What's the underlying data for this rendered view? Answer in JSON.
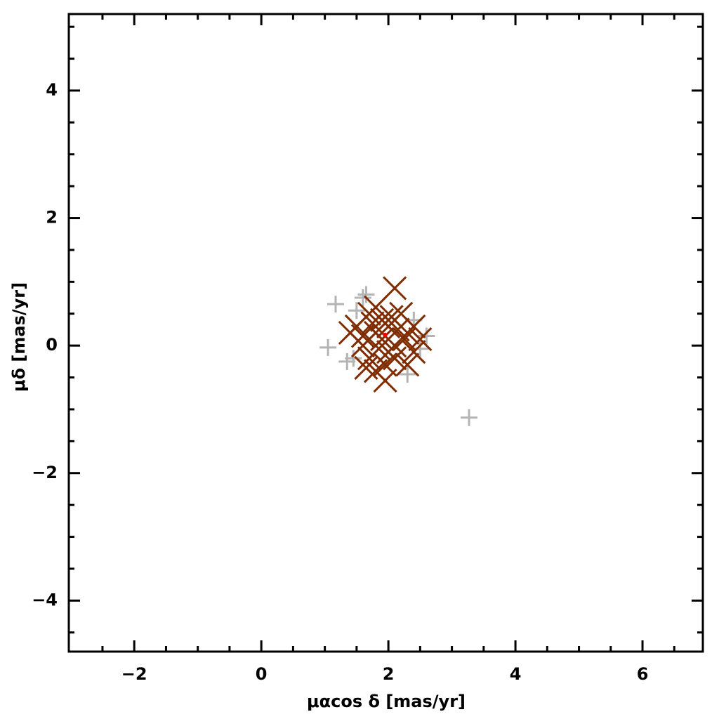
{
  "chart_data": {
    "type": "scatter",
    "xlabel": "μαcos δ [mas/yr]",
    "ylabel": "μδ [mas/yr]",
    "xlim": [
      -3.03,
      6.95
    ],
    "ylim": [
      -4.8,
      5.2
    ],
    "xticks": [
      {
        "value": -2,
        "label": "−2"
      },
      0,
      2,
      4,
      6
    ],
    "yticks": [
      {
        "value": -4,
        "label": "−4"
      },
      {
        "value": -2,
        "label": "−2"
      },
      0,
      2,
      4
    ],
    "xticks_minor": [
      -2.5,
      -1.5,
      -1,
      -0.5,
      0.5,
      1,
      1.5,
      2.5,
      3,
      3.5,
      4.5,
      5,
      5.5,
      6.5
    ],
    "yticks_minor": [
      -4.5,
      -3.5,
      -3,
      -2.5,
      -1.5,
      -1,
      -0.5,
      0.5,
      1,
      1.5,
      2.5,
      3,
      3.5,
      4.5,
      5
    ],
    "series": [
      {
        "color": "#b4b4b4",
        "marker": "plus",
        "x": [
          1.17,
          1.05,
          1.35,
          1.6,
          1.65,
          2.4,
          2.6,
          2.5,
          2.3,
          3.27,
          1.45,
          1.5
        ],
        "values": [
          0.65,
          -0.03,
          -0.25,
          0.75,
          0.8,
          0.4,
          0.15,
          -0.05,
          -0.45,
          -1.13,
          -0.2,
          0.55
        ]
      },
      {
        "color": "#7f2c00",
        "marker": "cross",
        "x": [
          2.1,
          1.4,
          1.5,
          1.7,
          1.8,
          2.2,
          2.4,
          2.5,
          1.6,
          1.7,
          1.65,
          1.95,
          2.3,
          2.4,
          1.8,
          1.9,
          2.0,
          2.1,
          2.0,
          1.85,
          2.15,
          1.75,
          2.05,
          1.9,
          2.25,
          1.6,
          2.3,
          1.95,
          2.1,
          1.8
        ],
        "values": [
          0.9,
          0.2,
          0.3,
          0.5,
          0.6,
          0.5,
          0.3,
          0.1,
          0.0,
          -0.2,
          -0.35,
          -0.55,
          -0.3,
          -0.1,
          0.2,
          0.1,
          0.3,
          0.0,
          -0.1,
          -0.05,
          0.25,
          0.35,
          0.45,
          0.4,
          0.1,
          0.15,
          0.2,
          -0.3,
          -0.2,
          -0.4
        ]
      },
      {
        "color": "#ff0000",
        "marker": "dot",
        "x": [
          1.95
        ],
        "values": [
          0.17
        ]
      }
    ]
  }
}
